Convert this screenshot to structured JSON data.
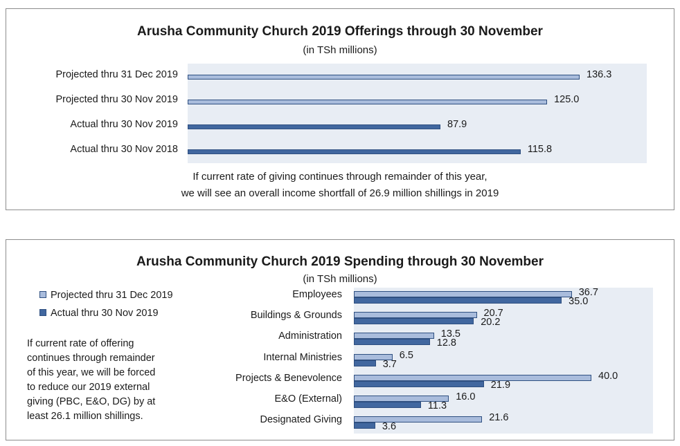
{
  "colors": {
    "projected": "#a9bcdc",
    "actual": "#41679f",
    "plot_bg": "#e8edf4"
  },
  "chart_data": [
    {
      "type": "bar",
      "orientation": "horizontal",
      "title": "Arusha Community Church 2019 Offerings through 30 November",
      "subtitle": "(in TSh millions)",
      "categories": [
        "Projected thru 31 Dec 2019",
        "Projected thru 30 Nov 2019",
        "Actual thru 30 Nov 2019",
        "Actual thru 30 Nov 2018"
      ],
      "values": [
        136.3,
        125.0,
        87.9,
        115.8
      ],
      "value_labels": [
        "136.3",
        "125.0",
        "87.9",
        "115.8"
      ],
      "bar_styles": [
        "projected",
        "projected",
        "actual",
        "actual"
      ],
      "xlim": [
        0,
        136.3
      ],
      "grid": false,
      "note": [
        "If current rate of giving continues through remainder of this year,",
        "we will see an overall income shortfall of 26.9 million shillings in 2019"
      ]
    },
    {
      "type": "bar",
      "orientation": "horizontal",
      "title": "Arusha Community Church 2019 Spending through 30 November",
      "subtitle": "(in TSh millions)",
      "categories": [
        "Employees",
        "Buildings & Grounds",
        "Administration",
        "Internal Ministries",
        "Projects & Benevolence",
        "E&O (External)",
        "Designated Giving"
      ],
      "series": [
        {
          "name": "Projected thru 31 Dec 2019",
          "style": "projected",
          "values": [
            36.7,
            20.7,
            13.5,
            6.5,
            40.0,
            16.0,
            21.6
          ],
          "labels": [
            "36.7",
            "20.7",
            "13.5",
            "6.5",
            "40.0",
            "16.0",
            "21.6"
          ]
        },
        {
          "name": "Actual thru 30 Nov 2019",
          "style": "actual",
          "values": [
            35.0,
            20.2,
            12.8,
            3.7,
            21.9,
            11.3,
            3.6
          ],
          "labels": [
            "35.0",
            "20.2",
            "12.8",
            "3.7",
            "21.9",
            "11.3",
            "3.6"
          ]
        }
      ],
      "xlim": [
        0,
        40.0
      ],
      "grid": false,
      "legend_position": "left",
      "note": [
        "If current rate of offering",
        "continues through remainder",
        "of this year, we will be forced",
        "to reduce our 2019 external",
        "giving (PBC, E&O, DG) by at",
        "least 26.1 million shillings."
      ]
    }
  ]
}
